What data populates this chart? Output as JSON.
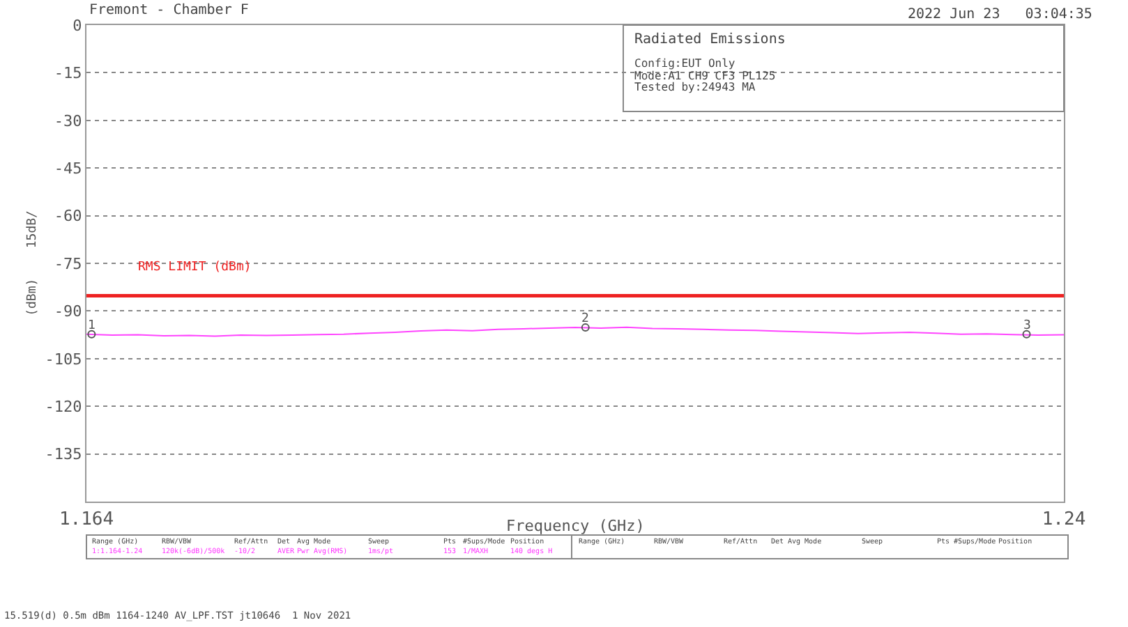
{
  "chart_data": {
    "type": "line",
    "title": "Fremont - Chamber F",
    "xlabel": "Frequency (GHz)",
    "ylabel": "(dBm)    15dB/",
    "x": [
      1.164,
      1.166,
      1.168,
      1.17,
      1.172,
      1.174,
      1.176,
      1.178,
      1.18,
      1.182,
      1.184,
      1.186,
      1.188,
      1.19,
      1.192,
      1.194,
      1.196,
      1.198,
      1.2,
      1.202,
      1.204,
      1.206,
      1.208,
      1.21,
      1.212,
      1.214,
      1.216,
      1.218,
      1.22,
      1.222,
      1.224,
      1.226,
      1.228,
      1.23,
      1.232,
      1.234,
      1.236,
      1.238,
      1.24
    ],
    "series": [
      {
        "color": "#ff44ff",
        "values": [
          -97.3,
          -97.6,
          -97.5,
          -97.8,
          -97.7,
          -97.9,
          -97.6,
          -97.7,
          -97.6,
          -97.4,
          -97.3,
          -97.0,
          -96.7,
          -96.3,
          -96.0,
          -96.2,
          -95.8,
          -95.6,
          -95.4,
          -95.2,
          -95.4,
          -95.1,
          -95.5,
          -95.6,
          -95.8,
          -96.0,
          -96.1,
          -96.4,
          -96.6,
          -96.8,
          -97.1,
          -96.9,
          -96.7,
          -97.0,
          -97.3,
          -97.2,
          -97.4,
          -97.6,
          -97.5
        ]
      }
    ],
    "ylim": [
      -150,
      0
    ],
    "yticks": [
      0,
      -15,
      -30,
      -45,
      -60,
      -75,
      -90,
      -105,
      -120,
      -135,
      {
        "value": -150,
        "label": null
      }
    ],
    "xlim": [
      1.164,
      1.24
    ],
    "xticks": [
      1.164,
      1.24
    ],
    "grid": "y",
    "line_style": "solid",
    "marker": "none",
    "ref_lines": [
      {
        "axis": "y",
        "value": -85.2,
        "label": "RMS LIMIT (dBm)",
        "color": "#ee2222"
      }
    ],
    "annotations": [
      "2022 Jun 23   03:04:35",
      "Radiated Emissions",
      "Config:EUT Only",
      "Mode:A1 CH9 CF3 PL125",
      "Tested by:24943 MA",
      "15.519(d) 0.5m dBm 1164-1240 AV_LPF.TST jt10646  1 Nov 2021",
      "Range (GHz)",
      "RBW/VBW",
      "Ref/Attn",
      "Det",
      "Avg Mode",
      "Sweep",
      "Pts",
      "#Sups/Mode",
      "Position",
      "1:1.164-1.24",
      "120k(-6dB)/500k",
      "-10/2",
      "AVER",
      "Pwr Avg(RMS)",
      "1ms/pt",
      "153",
      "1/MAXH",
      "140 degs H",
      "Range (GHz)",
      "RBW/VBW",
      "Ref/Attn",
      "Det",
      "Avg Mode",
      "Sweep",
      "Pts",
      "#Sups/Mode",
      "Position",
      {
        "text": "1",
        "x": 1.1644,
        "y": -97.3
      },
      {
        "text": "2",
        "x": 1.2028,
        "y": -95.2
      },
      {
        "text": "3",
        "x": 1.2371,
        "y": -97.3
      }
    ]
  }
}
